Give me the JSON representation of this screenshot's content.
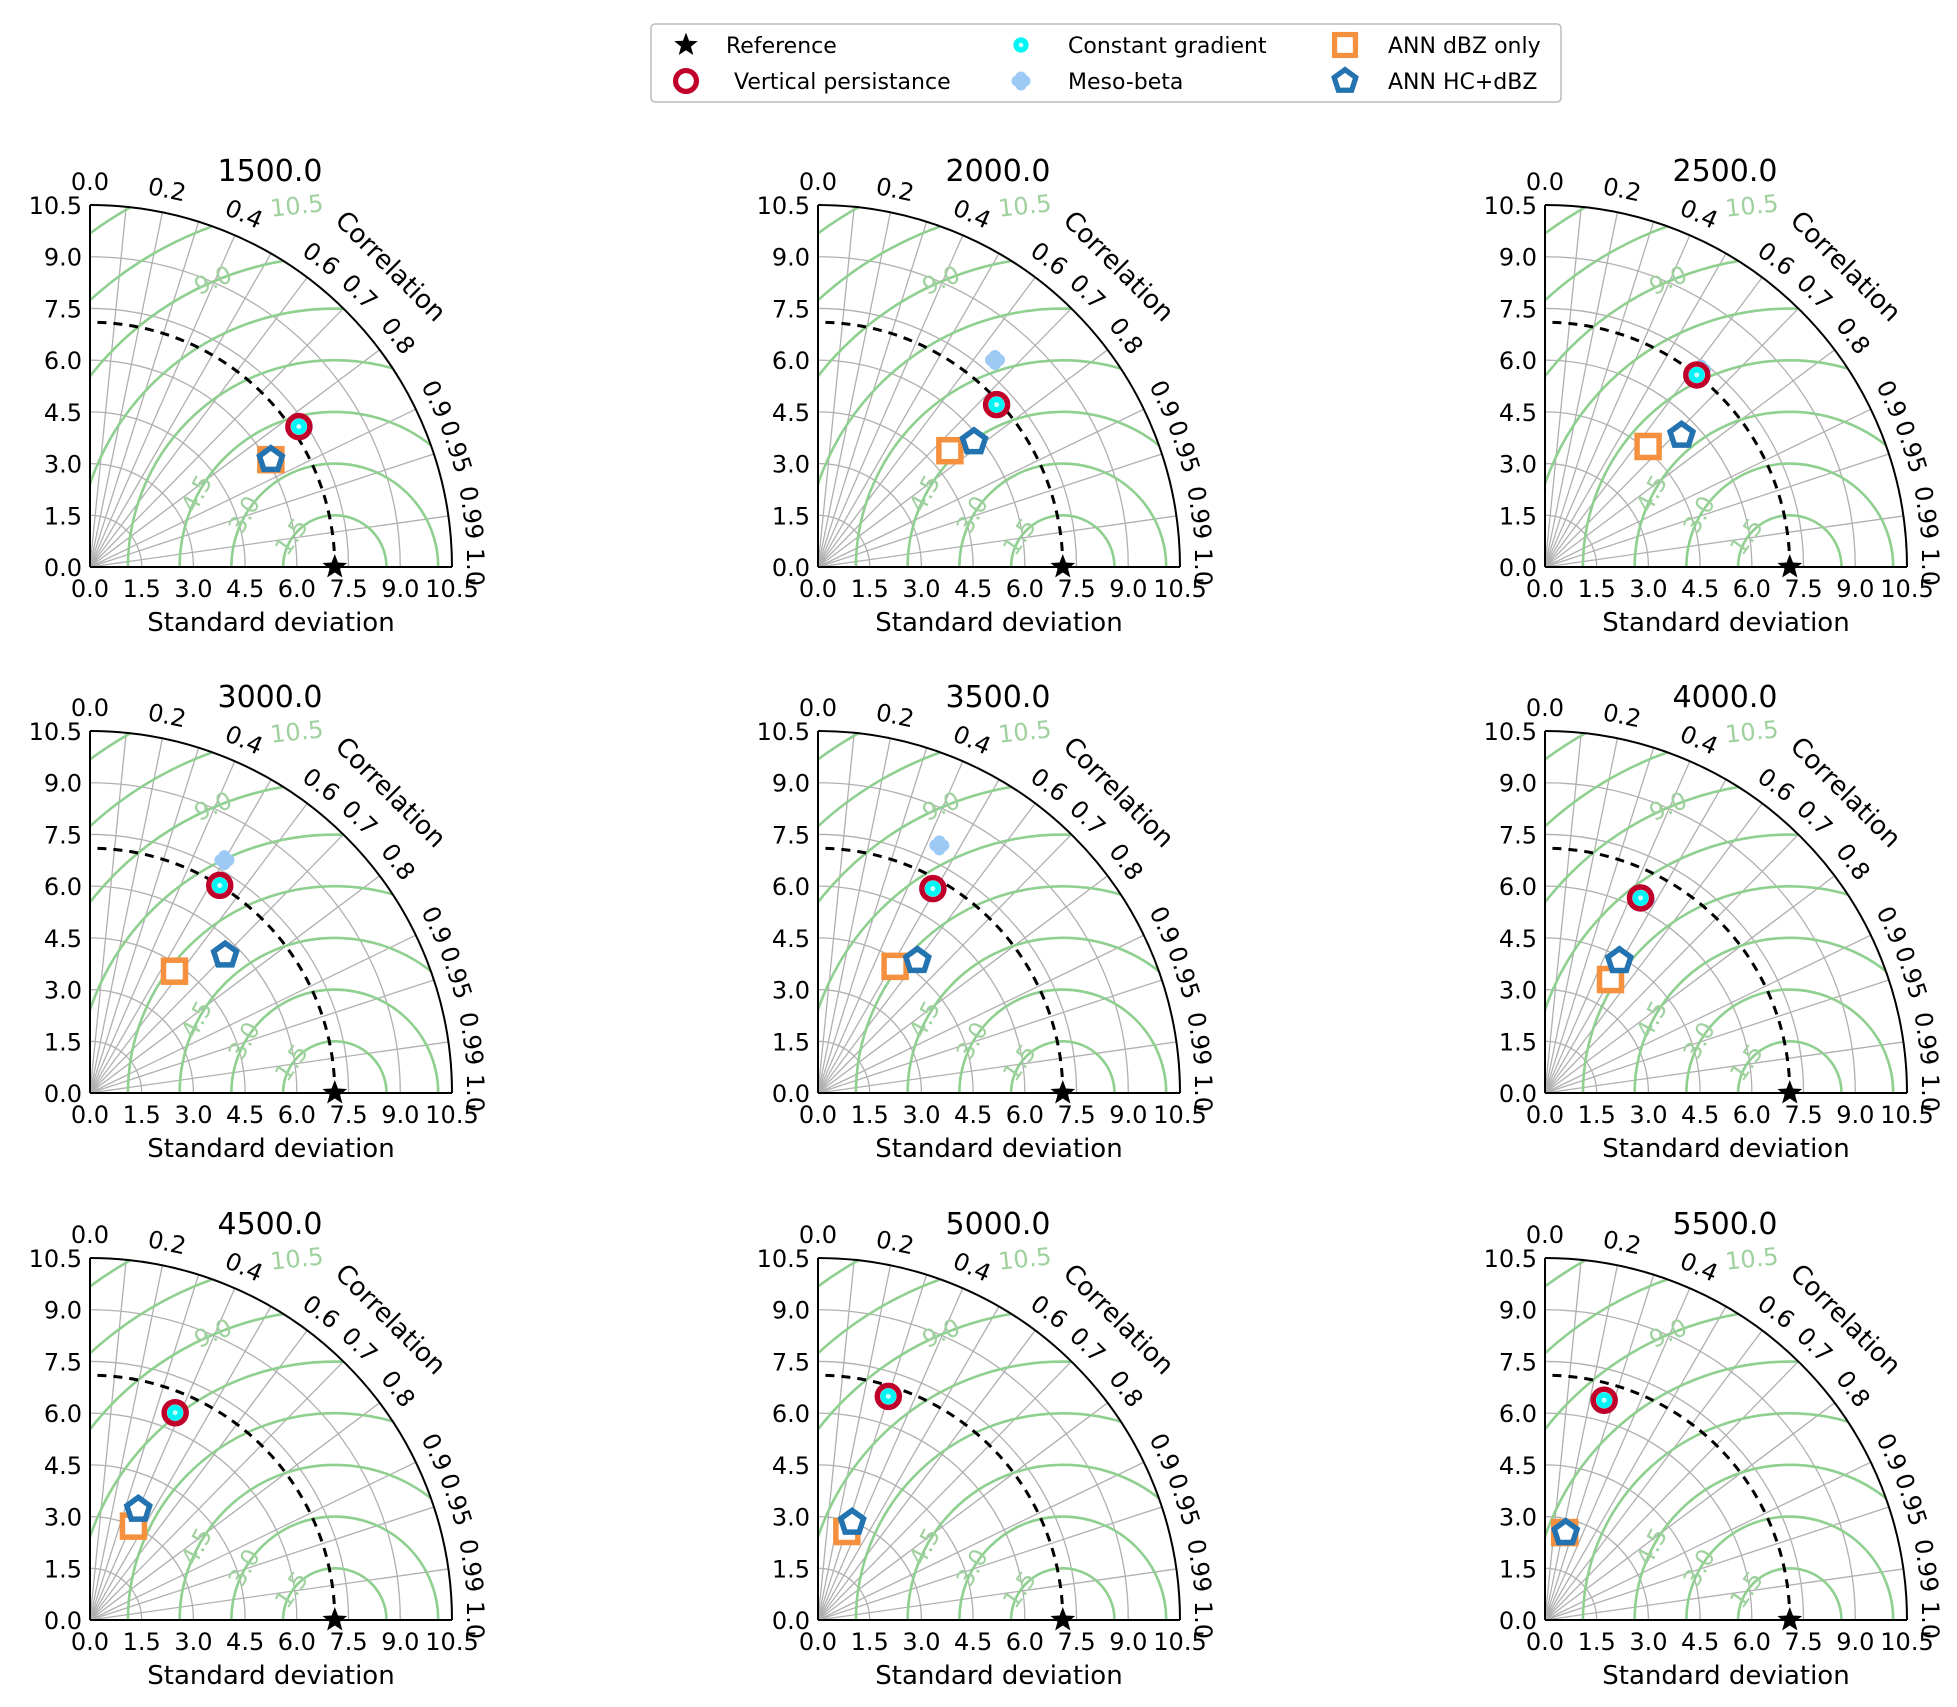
{
  "colors": {
    "reference": "#000000",
    "vertical_persistance": "#c0002a",
    "constant_gradient": "#00f5f5",
    "meso_beta": "#9ccaf5",
    "ann_dbz_only": "#f5913e",
    "ann_hc_dbz": "#2373b0",
    "rms_contour": "#8fcf8f",
    "grid": "#b0b0b0"
  },
  "legend": {
    "items": [
      {
        "key": "reference",
        "label": "Reference",
        "marker": "star-icon"
      },
      {
        "key": "vertical_persistance",
        "label": "Vertical persistance",
        "marker": "ring-icon"
      },
      {
        "key": "constant_gradient",
        "label": "Constant gradient",
        "marker": "dot-icon"
      },
      {
        "key": "meso_beta",
        "label": "Meso-beta",
        "marker": "plus-blob-icon"
      },
      {
        "key": "ann_dbz_only",
        "label": "ANN dBZ only",
        "marker": "square-icon"
      },
      {
        "key": "ann_hc_dbz",
        "label": "ANN HC+dBZ",
        "marker": "pentagon-icon"
      }
    ]
  },
  "chart_data": [
    {
      "type": "taylor",
      "title": "1500.0",
      "xlabel": "Standard deviation",
      "correlation_label": "Correlation",
      "reference_std": 7.1,
      "std_range": [
        0,
        10.5
      ],
      "std_ticks": [
        "0.0",
        "1.5",
        "3.0",
        "4.5",
        "6.0",
        "7.5",
        "9.0",
        "10.5"
      ],
      "correlation_ticks": [
        "0.0",
        "0.2",
        "0.4",
        "0.6",
        "0.7",
        "0.8",
        "0.9",
        "0.95",
        "0.99",
        "1.0"
      ],
      "rms_contour_labels": [
        "1.5",
        "3.0",
        "4.5",
        "9.0",
        "10.5"
      ],
      "points": [
        {
          "key": "vertical_persistance",
          "std": 7.3,
          "corr": 0.83
        },
        {
          "key": "constant_gradient",
          "std": 7.3,
          "corr": 0.83
        },
        {
          "key": "meso_beta",
          "std": 7.3,
          "corr": 0.83
        },
        {
          "key": "ann_dbz_only",
          "std": 6.1,
          "corr": 0.86
        },
        {
          "key": "ann_hc_dbz",
          "std": 6.1,
          "corr": 0.86
        }
      ]
    },
    {
      "type": "taylor",
      "title": "2000.0",
      "xlabel": "Standard deviation",
      "correlation_label": "Correlation",
      "reference_std": 7.1,
      "std_range": [
        0,
        10.5
      ],
      "std_ticks": [
        "0.0",
        "1.5",
        "3.0",
        "4.5",
        "6.0",
        "7.5",
        "9.0",
        "10.5"
      ],
      "correlation_ticks": [
        "0.0",
        "0.2",
        "0.4",
        "0.6",
        "0.7",
        "0.8",
        "0.9",
        "0.95",
        "0.99",
        "1.0"
      ],
      "rms_contour_labels": [
        "1.5",
        "3.0",
        "4.5",
        "9.0",
        "10.5"
      ],
      "points": [
        {
          "key": "meso_beta",
          "std": 7.9,
          "corr": 0.65
        },
        {
          "key": "vertical_persistance",
          "std": 7.0,
          "corr": 0.74
        },
        {
          "key": "constant_gradient",
          "std": 7.0,
          "corr": 0.74
        },
        {
          "key": "ann_hc_dbz",
          "std": 5.8,
          "corr": 0.78
        },
        {
          "key": "ann_dbz_only",
          "std": 5.1,
          "corr": 0.75
        }
      ]
    },
    {
      "type": "taylor",
      "title": "2500.0",
      "xlabel": "Standard deviation",
      "correlation_label": "Correlation",
      "reference_std": 7.1,
      "std_range": [
        0,
        10.5
      ],
      "std_ticks": [
        "0.0",
        "1.5",
        "3.0",
        "4.5",
        "6.0",
        "7.5",
        "9.0",
        "10.5"
      ],
      "correlation_ticks": [
        "0.0",
        "0.2",
        "0.4",
        "0.6",
        "0.7",
        "0.8",
        "0.9",
        "0.95",
        "0.99",
        "1.0"
      ],
      "rms_contour_labels": [
        "1.5",
        "3.0",
        "4.5",
        "9.0",
        "10.5"
      ],
      "points": [
        {
          "key": "meso_beta",
          "std": 7.3,
          "corr": 0.62
        },
        {
          "key": "vertical_persistance",
          "std": 7.1,
          "corr": 0.62
        },
        {
          "key": "constant_gradient",
          "std": 7.1,
          "corr": 0.62
        },
        {
          "key": "ann_hc_dbz",
          "std": 5.5,
          "corr": 0.72
        },
        {
          "key": "ann_dbz_only",
          "std": 4.6,
          "corr": 0.65
        }
      ]
    },
    {
      "type": "taylor",
      "title": "3000.0",
      "xlabel": "Standard deviation",
      "correlation_label": "Correlation",
      "reference_std": 7.1,
      "std_range": [
        0,
        10.5
      ],
      "std_ticks": [
        "0.0",
        "1.5",
        "3.0",
        "4.5",
        "6.0",
        "7.5",
        "9.0",
        "10.5"
      ],
      "correlation_ticks": [
        "0.0",
        "0.2",
        "0.4",
        "0.6",
        "0.7",
        "0.8",
        "0.9",
        "0.95",
        "0.99",
        "1.0"
      ],
      "rms_contour_labels": [
        "1.5",
        "3.0",
        "4.5",
        "9.0",
        "10.5"
      ],
      "points": [
        {
          "key": "meso_beta",
          "std": 7.8,
          "corr": 0.5
        },
        {
          "key": "vertical_persistance",
          "std": 7.1,
          "corr": 0.53
        },
        {
          "key": "constant_gradient",
          "std": 7.1,
          "corr": 0.53
        },
        {
          "key": "ann_hc_dbz",
          "std": 5.6,
          "corr": 0.7
        },
        {
          "key": "ann_dbz_only",
          "std": 4.3,
          "corr": 0.57
        }
      ]
    },
    {
      "type": "taylor",
      "title": "3500.0",
      "xlabel": "Standard deviation",
      "correlation_label": "Correlation",
      "reference_std": 7.1,
      "std_range": [
        0,
        10.5
      ],
      "std_ticks": [
        "0.0",
        "1.5",
        "3.0",
        "4.5",
        "6.0",
        "7.5",
        "9.0",
        "10.5"
      ],
      "correlation_ticks": [
        "0.0",
        "0.2",
        "0.4",
        "0.6",
        "0.7",
        "0.8",
        "0.9",
        "0.95",
        "0.99",
        "1.0"
      ],
      "rms_contour_labels": [
        "1.5",
        "3.0",
        "4.5",
        "9.0",
        "10.5"
      ],
      "points": [
        {
          "key": "meso_beta",
          "std": 8.0,
          "corr": 0.44
        },
        {
          "key": "vertical_persistance",
          "std": 6.8,
          "corr": 0.49
        },
        {
          "key": "constant_gradient",
          "std": 6.8,
          "corr": 0.49
        },
        {
          "key": "ann_hc_dbz",
          "std": 4.8,
          "corr": 0.6
        },
        {
          "key": "ann_dbz_only",
          "std": 4.3,
          "corr": 0.52
        }
      ]
    },
    {
      "type": "taylor",
      "title": "4000.0",
      "xlabel": "Standard deviation",
      "correlation_label": "Correlation",
      "reference_std": 7.1,
      "std_range": [
        0,
        10.5
      ],
      "std_ticks": [
        "0.0",
        "1.5",
        "3.0",
        "4.5",
        "6.0",
        "7.5",
        "9.0",
        "10.5"
      ],
      "correlation_ticks": [
        "0.0",
        "0.2",
        "0.4",
        "0.6",
        "0.7",
        "0.8",
        "0.9",
        "0.95",
        "0.99",
        "1.0"
      ],
      "rms_contour_labels": [
        "1.5",
        "3.0",
        "4.5",
        "9.0",
        "10.5"
      ],
      "points": [
        {
          "key": "meso_beta",
          "std": 6.3,
          "corr": 0.46
        },
        {
          "key": "vertical_persistance",
          "std": 6.3,
          "corr": 0.44
        },
        {
          "key": "constant_gradient",
          "std": 6.3,
          "corr": 0.44
        },
        {
          "key": "ann_hc_dbz",
          "std": 4.4,
          "corr": 0.49
        },
        {
          "key": "ann_dbz_only",
          "std": 3.8,
          "corr": 0.5
        }
      ]
    },
    {
      "type": "taylor",
      "title": "4500.0",
      "xlabel": "Standard deviation",
      "correlation_label": "Correlation",
      "reference_std": 7.1,
      "std_range": [
        0,
        10.5
      ],
      "std_ticks": [
        "0.0",
        "1.5",
        "3.0",
        "4.5",
        "6.0",
        "7.5",
        "9.0",
        "10.5"
      ],
      "correlation_ticks": [
        "0.0",
        "0.2",
        "0.4",
        "0.6",
        "0.7",
        "0.8",
        "0.9",
        "0.95",
        "0.99",
        "1.0"
      ],
      "rms_contour_labels": [
        "1.5",
        "3.0",
        "4.5",
        "9.0",
        "10.5"
      ],
      "points": [
        {
          "key": "meso_beta",
          "std": 6.5,
          "corr": 0.37
        },
        {
          "key": "vertical_persistance",
          "std": 6.5,
          "corr": 0.38
        },
        {
          "key": "constant_gradient",
          "std": 6.5,
          "corr": 0.38
        },
        {
          "key": "ann_hc_dbz",
          "std": 3.5,
          "corr": 0.4
        },
        {
          "key": "ann_dbz_only",
          "std": 3.0,
          "corr": 0.42
        }
      ]
    },
    {
      "type": "taylor",
      "title": "5000.0",
      "xlabel": "Standard deviation",
      "correlation_label": "Correlation",
      "reference_std": 7.1,
      "std_range": [
        0,
        10.5
      ],
      "std_ticks": [
        "0.0",
        "1.5",
        "3.0",
        "4.5",
        "6.0",
        "7.5",
        "9.0",
        "10.5"
      ],
      "correlation_ticks": [
        "0.0",
        "0.2",
        "0.4",
        "0.6",
        "0.7",
        "0.8",
        "0.9",
        "0.95",
        "0.99",
        "1.0"
      ],
      "rms_contour_labels": [
        "1.5",
        "3.0",
        "4.5",
        "9.0",
        "10.5"
      ],
      "points": [
        {
          "key": "vertical_persistance",
          "std": 6.8,
          "corr": 0.3
        },
        {
          "key": "constant_gradient",
          "std": 6.8,
          "corr": 0.3
        },
        {
          "key": "ann_hc_dbz",
          "std": 3.0,
          "corr": 0.33
        },
        {
          "key": "ann_dbz_only",
          "std": 2.7,
          "corr": 0.31
        }
      ]
    },
    {
      "type": "taylor",
      "title": "5500.0",
      "xlabel": "Standard deviation",
      "correlation_label": "Correlation",
      "reference_std": 7.1,
      "std_range": [
        0,
        10.5
      ],
      "std_ticks": [
        "0.0",
        "1.5",
        "3.0",
        "4.5",
        "6.0",
        "7.5",
        "9.0",
        "10.5"
      ],
      "correlation_ticks": [
        "0.0",
        "0.2",
        "0.4",
        "0.6",
        "0.7",
        "0.8",
        "0.9",
        "0.95",
        "0.99",
        "1.0"
      ],
      "rms_contour_labels": [
        "1.5",
        "3.0",
        "4.5",
        "9.0",
        "10.5"
      ],
      "points": [
        {
          "key": "vertical_persistance",
          "std": 6.6,
          "corr": 0.26
        },
        {
          "key": "constant_gradient",
          "std": 6.6,
          "corr": 0.26
        },
        {
          "key": "ann_hc_dbz",
          "std": 2.6,
          "corr": 0.23
        },
        {
          "key": "ann_dbz_only",
          "std": 2.6,
          "corr": 0.22
        }
      ]
    }
  ]
}
